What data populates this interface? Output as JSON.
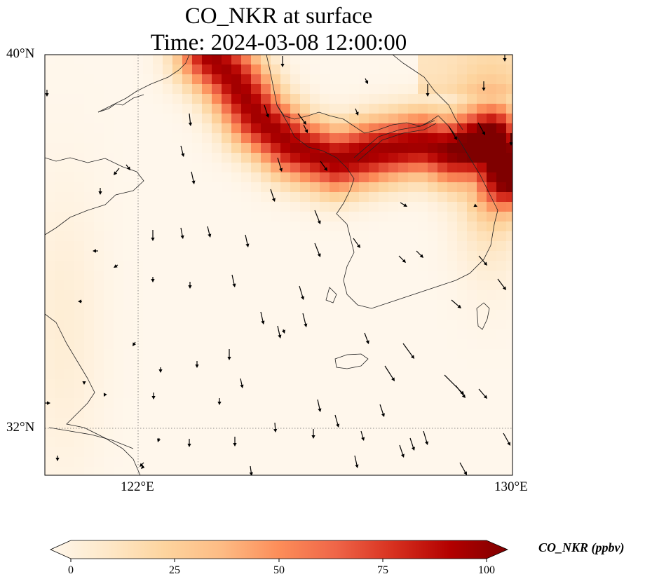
{
  "title": {
    "line1": "CO_NKR at surface",
    "line2": "Time: 2024-03-08 12:00:00"
  },
  "map": {
    "lat_range": [
      31,
      40.3
    ],
    "lon_range": [
      120,
      130
    ],
    "lat_ticks": [
      {
        "value": 40,
        "label": "40°N"
      },
      {
        "value": 32,
        "label": "32°N"
      }
    ],
    "lon_ticks": [
      {
        "value": 122,
        "label": "122°E"
      },
      {
        "value": 130,
        "label": "130°E"
      }
    ],
    "gridlines": "dotted",
    "field_variable": "CO_NKR",
    "wind_vectors": "black arrows, mostly pointing south-southeast"
  },
  "colorbar": {
    "label": "CO_NKR (ppbv)",
    "ticks": [
      0,
      25,
      50,
      75,
      100
    ],
    "min": 0,
    "max": 100,
    "extend": "both",
    "colormap": [
      "#fff7ec",
      "#fee8c8",
      "#fdd49e",
      "#fdbb84",
      "#fc8d59",
      "#ef6548",
      "#d7301f",
      "#b30000",
      "#7f0000"
    ]
  }
}
